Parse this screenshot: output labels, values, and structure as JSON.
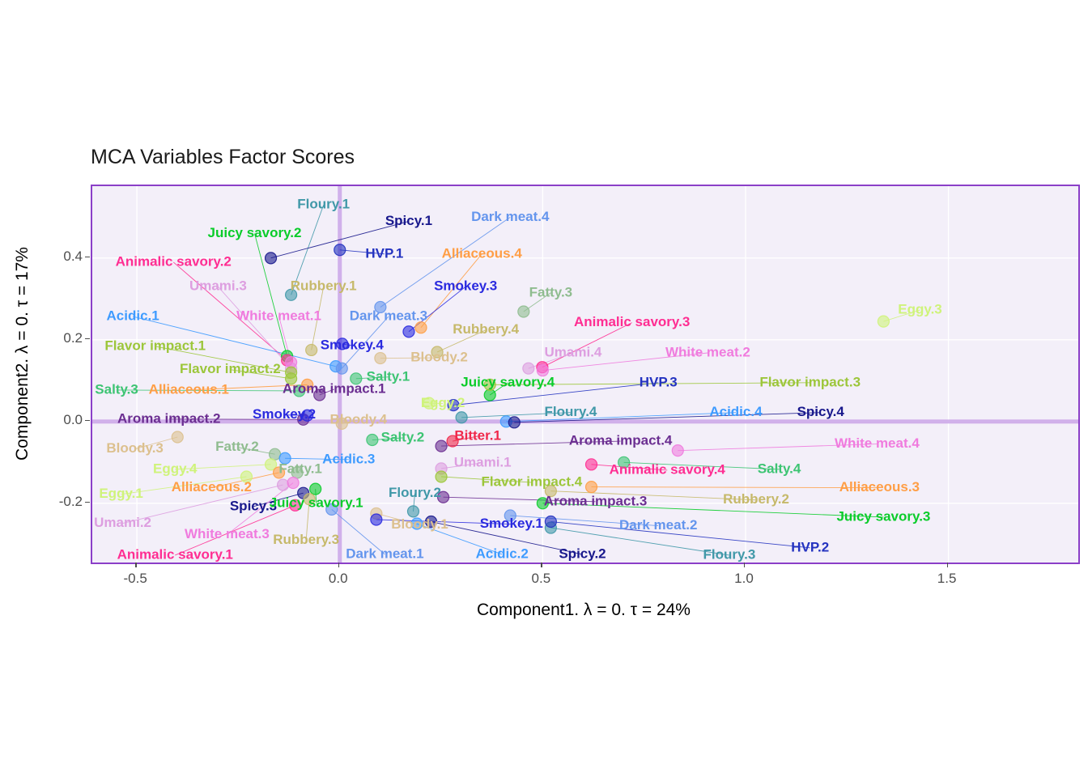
{
  "title": "MCA Variables Factor Scores",
  "x_axis": {
    "label": "Component1.  λ = 0.  τ = 24%",
    "ticks": [
      -0.5,
      0.0,
      0.5,
      1.0,
      1.5
    ],
    "tick_labels": [
      "-0.5",
      "0.0",
      "0.5",
      "1.0",
      "1.5"
    ],
    "range": [
      -0.61,
      1.82
    ]
  },
  "y_axis": {
    "label": "Component2.  λ = 0.  τ = 17%",
    "ticks": [
      -0.2,
      0.0,
      0.2,
      0.4
    ],
    "tick_labels": [
      "-0.2",
      "0.0",
      "0.2",
      "0.4"
    ],
    "range": [
      -0.345,
      0.576
    ]
  },
  "style": {
    "panel_bg": "#F3EFF9",
    "panel_border": "#8B3FC8",
    "ref_line": "#C9A3E8",
    "grid": "#FFFFFF",
    "tick_text": "#4D4D4D",
    "title_color": "#1A1A1A"
  },
  "palette": {
    "Floury": "#4098A8",
    "Spicy": "#18188C",
    "Dark meat": "#6495ED",
    "Juicy savory": "#0ACC2A",
    "HVP": "#2433C0",
    "Alliaceous": "#FF9E45",
    "Animalic savory": "#FF2D92",
    "Umami": "#DD9EE0",
    "Rubbery": "#C6B96A",
    "Smokey": "#2A2ADF",
    "Fatty": "#8FBC8F",
    "Acidic": "#3E9BFF",
    "White meat": "#F07BDE",
    "Flavor impact": "#9CC63A",
    "Bloody": "#DCC08E",
    "Salty": "#3DC473",
    "Aroma impact": "#6B2E91",
    "Eggy": "#CFF37A",
    "Bitter": "#F0284A"
  },
  "chart_data": {
    "type": "scatter",
    "title": "MCA Variables Factor Scores",
    "xlabel": "Component1.  λ = 0.  τ = 24%",
    "ylabel": "Component2.  λ = 0.  τ = 17%",
    "xlim": [
      -0.61,
      1.82
    ],
    "ylim": [
      -0.345,
      0.576
    ],
    "points": [
      {
        "label": "Floury.1",
        "group": "Floury",
        "x": -0.12,
        "y": 0.31,
        "lx": -0.04,
        "ly": 0.53
      },
      {
        "label": "Spicy.1",
        "group": "Spicy",
        "x": -0.17,
        "y": 0.4,
        "lx": 0.17,
        "ly": 0.49
      },
      {
        "label": "Dark meat.4",
        "group": "Dark meat",
        "x": 0.1,
        "y": 0.28,
        "lx": 0.42,
        "ly": 0.5
      },
      {
        "label": "Juicy savory.2",
        "group": "Juicy savory",
        "x": -0.13,
        "y": 0.16,
        "lx": -0.21,
        "ly": 0.46
      },
      {
        "label": "HVP.1",
        "group": "HVP",
        "x": 0.0,
        "y": 0.42,
        "lx": 0.11,
        "ly": 0.41
      },
      {
        "label": "Alliaceous.4",
        "group": "Alliaceous",
        "x": 0.2,
        "y": 0.23,
        "lx": 0.35,
        "ly": 0.41
      },
      {
        "label": "Animalic savory.2",
        "group": "Animalic savory",
        "x": -0.13,
        "y": 0.15,
        "lx": -0.41,
        "ly": 0.39
      },
      {
        "label": "Umami.3",
        "group": "Umami",
        "x": -0.12,
        "y": 0.13,
        "lx": -0.3,
        "ly": 0.33
      },
      {
        "label": "Rubbery.1",
        "group": "Rubbery",
        "x": -0.07,
        "y": 0.175,
        "lx": -0.04,
        "ly": 0.33
      },
      {
        "label": "Smokey.3",
        "group": "Smokey",
        "x": 0.17,
        "y": 0.22,
        "lx": 0.31,
        "ly": 0.33
      },
      {
        "label": "Fatty.3",
        "group": "Fatty",
        "x": 0.453,
        "y": 0.269,
        "lx": 0.52,
        "ly": 0.315
      },
      {
        "label": "Acidic.1",
        "group": "Acidic",
        "x": -0.01,
        "y": 0.135,
        "lx": -0.51,
        "ly": 0.257
      },
      {
        "label": "White meat.1",
        "group": "White meat",
        "x": -0.12,
        "y": 0.145,
        "lx": -0.15,
        "ly": 0.257
      },
      {
        "label": "Dark meat.3",
        "group": "Dark meat",
        "x": 0.005,
        "y": 0.13,
        "lx": 0.12,
        "ly": 0.257
      },
      {
        "label": "Eggy.3",
        "group": "Eggy",
        "x": 1.34,
        "y": 0.245,
        "lx": 1.43,
        "ly": 0.273
      },
      {
        "label": "Flavor impact.1",
        "group": "Flavor impact",
        "x": -0.12,
        "y": 0.12,
        "lx": -0.455,
        "ly": 0.184
      },
      {
        "label": "Rubbery.4",
        "group": "Rubbery",
        "x": 0.24,
        "y": 0.17,
        "lx": 0.36,
        "ly": 0.224
      },
      {
        "label": "Animalic savory.3",
        "group": "Animalic savory",
        "x": 0.499,
        "y": 0.133,
        "lx": 0.72,
        "ly": 0.242
      },
      {
        "label": "Flavor impact.2",
        "group": "Flavor impact",
        "x": -0.12,
        "y": 0.105,
        "lx": -0.27,
        "ly": 0.127
      },
      {
        "label": "Smokey.4",
        "group": "Smokey",
        "x": 0.006,
        "y": 0.19,
        "lx": 0.03,
        "ly": 0.186
      },
      {
        "label": "Bloody.2",
        "group": "Bloody",
        "x": 0.1,
        "y": 0.155,
        "lx": 0.245,
        "ly": 0.156
      },
      {
        "label": "Umami.4",
        "group": "Umami",
        "x": 0.465,
        "y": 0.13,
        "lx": 0.575,
        "ly": 0.168
      },
      {
        "label": "White meat.2",
        "group": "White meat",
        "x": 0.5,
        "y": 0.125,
        "lx": 0.907,
        "ly": 0.168
      },
      {
        "label": "Salty.3",
        "group": "Salty",
        "x": -0.1,
        "y": 0.075,
        "lx": -0.55,
        "ly": 0.077
      },
      {
        "label": "Alliaceous.1",
        "group": "Alliaceous",
        "x": -0.08,
        "y": 0.09,
        "lx": -0.372,
        "ly": 0.077
      },
      {
        "label": "Salty.1",
        "group": "Salty",
        "x": 0.04,
        "y": 0.105,
        "lx": 0.119,
        "ly": 0.109
      },
      {
        "label": "Aroma impact.1",
        "group": "Aroma impact",
        "x": -0.05,
        "y": 0.065,
        "lx": -0.014,
        "ly": 0.079
      },
      {
        "label": "Juicy savory.4",
        "group": "Juicy savory",
        "x": 0.37,
        "y": 0.065,
        "lx": 0.414,
        "ly": 0.095
      },
      {
        "label": "HVP.3",
        "group": "HVP",
        "x": 0.28,
        "y": 0.04,
        "lx": 0.785,
        "ly": 0.095
      },
      {
        "label": "Flavor impact.3",
        "group": "Flavor impact",
        "x": 0.37,
        "y": 0.09,
        "lx": 1.159,
        "ly": 0.095
      },
      {
        "label": "Aroma impact.2",
        "group": "Aroma impact",
        "x": -0.09,
        "y": 0.005,
        "lx": -0.421,
        "ly": 0.006
      },
      {
        "label": "Smokey.2",
        "group": "Smokey",
        "x": -0.08,
        "y": 0.015,
        "lx": -0.137,
        "ly": 0.016
      },
      {
        "label": "Eggy.2",
        "group": "Eggy",
        "x": 0.22,
        "y": 0.045,
        "lx": 0.254,
        "ly": 0.044
      },
      {
        "label": "Floury.4",
        "group": "Floury",
        "x": 0.3,
        "y": 0.01,
        "lx": 0.569,
        "ly": 0.022
      },
      {
        "label": "Acidic.4",
        "group": "Acidic",
        "x": 0.41,
        "y": 0.0,
        "lx": 0.976,
        "ly": 0.022
      },
      {
        "label": "Spicy.4",
        "group": "Spicy",
        "x": 0.43,
        "y": -0.002,
        "lx": 1.185,
        "ly": 0.022
      },
      {
        "label": "Bloody.3",
        "group": "Bloody",
        "x": -0.4,
        "y": -0.038,
        "lx": -0.505,
        "ly": -0.067
      },
      {
        "label": "Fatty.2",
        "group": "Fatty",
        "x": -0.16,
        "y": -0.08,
        "lx": -0.253,
        "ly": -0.063
      },
      {
        "label": "Bloody.4",
        "group": "Bloody",
        "x": 0.005,
        "y": -0.005,
        "lx": 0.046,
        "ly": 0.004
      },
      {
        "label": "Salty.2",
        "group": "Salty",
        "x": 0.08,
        "y": -0.045,
        "lx": 0.155,
        "ly": -0.04
      },
      {
        "label": "Bitter.1",
        "group": "Bitter",
        "x": 0.278,
        "y": -0.048,
        "lx": 0.34,
        "ly": -0.036
      },
      {
        "label": "Aroma impact.4",
        "group": "Aroma impact",
        "x": 0.25,
        "y": -0.06,
        "lx": 0.692,
        "ly": -0.048
      },
      {
        "label": "White meat.4",
        "group": "White meat",
        "x": 0.833,
        "y": -0.071,
        "lx": 1.324,
        "ly": -0.055
      },
      {
        "label": "Eggy.4",
        "group": "Eggy",
        "x": -0.17,
        "y": -0.105,
        "lx": -0.406,
        "ly": -0.117
      },
      {
        "label": "Acidic.3",
        "group": "Acidic",
        "x": -0.135,
        "y": -0.09,
        "lx": 0.022,
        "ly": -0.093
      },
      {
        "label": "Umami.1",
        "group": "Umami",
        "x": 0.25,
        "y": -0.115,
        "lx": 0.352,
        "ly": -0.101
      },
      {
        "label": "Animalic savory.4",
        "group": "Animalic savory",
        "x": 0.62,
        "y": -0.105,
        "lx": 0.807,
        "ly": -0.119
      },
      {
        "label": "Salty.4",
        "group": "Salty",
        "x": 0.7,
        "y": -0.1,
        "lx": 1.083,
        "ly": -0.117
      },
      {
        "label": "Eggy.1",
        "group": "Eggy",
        "x": -0.23,
        "y": -0.135,
        "lx": -0.539,
        "ly": -0.178
      },
      {
        "label": "Alliaceous.2",
        "group": "Alliaceous",
        "x": -0.15,
        "y": -0.125,
        "lx": -0.316,
        "ly": -0.162
      },
      {
        "label": "Fatty.1",
        "group": "Fatty",
        "x": -0.105,
        "y": -0.125,
        "lx": -0.097,
        "ly": -0.117
      },
      {
        "label": "Flavor impact.4",
        "group": "Flavor impact",
        "x": 0.25,
        "y": -0.135,
        "lx": 0.473,
        "ly": -0.149
      },
      {
        "label": "Rubbery.2",
        "group": "Rubbery",
        "x": 0.52,
        "y": -0.17,
        "lx": 1.026,
        "ly": -0.192
      },
      {
        "label": "Alliaceous.3",
        "group": "Alliaceous",
        "x": 0.62,
        "y": -0.16,
        "lx": 1.33,
        "ly": -0.162
      },
      {
        "label": "Spicy.3",
        "group": "Spicy",
        "x": -0.09,
        "y": -0.175,
        "lx": -0.213,
        "ly": -0.208
      },
      {
        "label": "Juicy savory.1",
        "group": "Juicy savory",
        "x": -0.06,
        "y": -0.165,
        "lx": -0.058,
        "ly": -0.2
      },
      {
        "label": "Floury.2",
        "group": "Floury",
        "x": 0.181,
        "y": -0.22,
        "lx": 0.185,
        "ly": -0.176
      },
      {
        "label": "Aroma impact.3",
        "group": "Aroma impact",
        "x": 0.255,
        "y": -0.185,
        "lx": 0.63,
        "ly": -0.196
      },
      {
        "label": "Juicy savory.3",
        "group": "Juicy savory",
        "x": 0.5,
        "y": -0.2,
        "lx": 1.34,
        "ly": -0.234
      },
      {
        "label": "Umami.2",
        "group": "Umami",
        "x": -0.14,
        "y": -0.155,
        "lx": -0.535,
        "ly": -0.249
      },
      {
        "label": "White meat.3",
        "group": "White meat",
        "x": -0.115,
        "y": -0.15,
        "lx": -0.278,
        "ly": -0.277
      },
      {
        "label": "Rubbery.3",
        "group": "Rubbery",
        "x": -0.075,
        "y": -0.19,
        "lx": -0.083,
        "ly": -0.291
      },
      {
        "label": "Bloody.1",
        "group": "Bloody",
        "x": 0.09,
        "y": -0.225,
        "lx": 0.197,
        "ly": -0.253
      },
      {
        "label": "Smokey.1",
        "group": "Smokey",
        "x": 0.09,
        "y": -0.24,
        "lx": 0.423,
        "ly": -0.251
      },
      {
        "label": "Dark meat.2",
        "group": "Dark meat",
        "x": 0.42,
        "y": -0.23,
        "lx": 0.785,
        "ly": -0.255
      },
      {
        "label": "Animalic savory.1",
        "group": "Animalic savory",
        "x": -0.11,
        "y": -0.205,
        "lx": -0.406,
        "ly": -0.327
      },
      {
        "label": "Dark meat.1",
        "group": "Dark meat",
        "x": -0.02,
        "y": -0.215,
        "lx": 0.111,
        "ly": -0.325
      },
      {
        "label": "Acidic.2",
        "group": "Acidic",
        "x": 0.19,
        "y": -0.25,
        "lx": 0.4,
        "ly": -0.325
      },
      {
        "label": "Spicy.2",
        "group": "Spicy",
        "x": 0.225,
        "y": -0.245,
        "lx": 0.598,
        "ly": -0.325
      },
      {
        "label": "Floury.3",
        "group": "Floury",
        "x": 0.52,
        "y": -0.26,
        "lx": 0.96,
        "ly": -0.327
      },
      {
        "label": "HVP.2",
        "group": "HVP",
        "x": 0.52,
        "y": -0.245,
        "lx": 1.159,
        "ly": -0.309
      }
    ]
  }
}
